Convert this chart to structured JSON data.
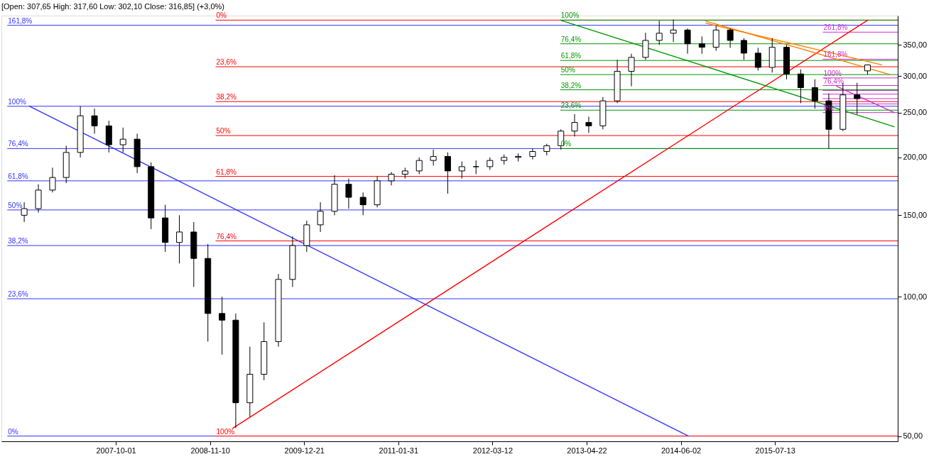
{
  "chart_data": {
    "type": "candlestick",
    "title": "[Open: 307,65  High: 317,60  Low: 302,10  Close: 316,85] (+3,0%)",
    "color": "#000000",
    "x": [
      "2006-09-01",
      "2006-11-01",
      "2007-01-01",
      "2007-03-01",
      "2007-05-01",
      "2007-07-01",
      "2007-09-01",
      "2007-11-01",
      "2008-01-01",
      "2008-03-01",
      "2008-05-01",
      "2008-07-01",
      "2008-09-01",
      "2008-11-01",
      "2009-01-01",
      "2009-03-01",
      "2009-05-01",
      "2009-07-01",
      "2009-09-01",
      "2009-11-01",
      "2010-01-01",
      "2010-03-01",
      "2010-05-01",
      "2010-07-01",
      "2010-09-01",
      "2010-11-01",
      "2011-01-01",
      "2011-03-01",
      "2011-05-01",
      "2011-07-01",
      "2011-09-01",
      "2011-11-01",
      "2012-01-01",
      "2012-03-01",
      "2012-05-01",
      "2012-07-01",
      "2012-09-01",
      "2012-11-01",
      "2013-01-01",
      "2013-03-01",
      "2013-05-01",
      "2013-07-01",
      "2013-09-01",
      "2013-11-01",
      "2014-01-01",
      "2014-03-01",
      "2014-05-01",
      "2014-07-01",
      "2014-09-01",
      "2014-11-01",
      "2015-01-01",
      "2015-03-01",
      "2015-05-01",
      "2015-07-01",
      "2015-09-01",
      "2015-11-01",
      "2016-01-01",
      "2016-03-01",
      "2016-05-01",
      "2016-07-01",
      "2016-08-15"
    ],
    "ohlc": [
      [
        150,
        160,
        145,
        155
      ],
      [
        155,
        175,
        152,
        170
      ],
      [
        170,
        190,
        168,
        181
      ],
      [
        181,
        212,
        176,
        205
      ],
      [
        205,
        258,
        200,
        246
      ],
      [
        246,
        255,
        225,
        234
      ],
      [
        234,
        240,
        205,
        213
      ],
      [
        213,
        232,
        205,
        219
      ],
      [
        219,
        225,
        185,
        191
      ],
      [
        191,
        195,
        140,
        148
      ],
      [
        148,
        158,
        125,
        131
      ],
      [
        131,
        150,
        118,
        138
      ],
      [
        138,
        145,
        105,
        121
      ],
      [
        121,
        130,
        80,
        92
      ],
      [
        92,
        100,
        75,
        89
      ],
      [
        89,
        92,
        52,
        59
      ],
      [
        59,
        78,
        55,
        68
      ],
      [
        68,
        88,
        66,
        80
      ],
      [
        80,
        112,
        78,
        109
      ],
      [
        109,
        135,
        105,
        129
      ],
      [
        129,
        146,
        125,
        143
      ],
      [
        143,
        160,
        138,
        153
      ],
      [
        153,
        183,
        150,
        175
      ],
      [
        175,
        180,
        155,
        164
      ],
      [
        164,
        168,
        150,
        158
      ],
      [
        158,
        182,
        156,
        178
      ],
      [
        178,
        186,
        174,
        184
      ],
      [
        184,
        190,
        180,
        187
      ],
      [
        187,
        200,
        184,
        197
      ],
      [
        197,
        208,
        192,
        201
      ],
      [
        201,
        205,
        167,
        187
      ],
      [
        187,
        196,
        180,
        191
      ],
      [
        191,
        197,
        184,
        191
      ],
      [
        191,
        200,
        188,
        197
      ],
      [
        197,
        203,
        193,
        200
      ],
      [
        200,
        204,
        196,
        201
      ],
      [
        201,
        209,
        198,
        206
      ],
      [
        206,
        214,
        202,
        212
      ],
      [
        212,
        230,
        208,
        228
      ],
      [
        228,
        248,
        222,
        238
      ],
      [
        238,
        245,
        226,
        234
      ],
      [
        234,
        270,
        230,
        265
      ],
      [
        265,
        325,
        262,
        307
      ],
      [
        307,
        335,
        285,
        329
      ],
      [
        329,
        372,
        325,
        358
      ],
      [
        358,
        395,
        350,
        371
      ],
      [
        371,
        397,
        355,
        377
      ],
      [
        377,
        380,
        335,
        352
      ],
      [
        352,
        365,
        335,
        346
      ],
      [
        346,
        385,
        340,
        377
      ],
      [
        377,
        380,
        345,
        358
      ],
      [
        358,
        362,
        325,
        336
      ],
      [
        336,
        345,
        308,
        313
      ],
      [
        313,
        362,
        305,
        346
      ],
      [
        346,
        350,
        295,
        303
      ],
      [
        303,
        310,
        262,
        283
      ],
      [
        283,
        295,
        255,
        265
      ],
      [
        265,
        275,
        209,
        230
      ],
      [
        230,
        290,
        228,
        273
      ],
      [
        273,
        290,
        248,
        268
      ],
      [
        307.65,
        317.6,
        302.1,
        316.85
      ]
    ],
    "series": [
      {
        "type": "line",
        "color": "#3333ff",
        "x": [
          "2006-09-23",
          "2014-07-05"
        ],
        "values": [
          258,
          50
        ]
      },
      {
        "type": "line",
        "color": "#ff0000",
        "x": [
          "2009-02-17",
          "2016-08-16"
        ],
        "values": [
          52,
          396
        ]
      },
      {
        "type": "line",
        "color": "#009900",
        "x": [
          "2012-12-29",
          "2016-12-08"
        ],
        "values": [
          396,
          233
        ]
      },
      {
        "type": "line",
        "color": "#cc33cc",
        "x": [
          "2016-04-04",
          "2016-12-08"
        ],
        "values": [
          285,
          250
        ]
      },
      {
        "type": "line",
        "color": "#ff7f00",
        "x": [
          "2014-09-18",
          "2016-11-20"
        ],
        "values": [
          394,
          302
        ]
      },
      {
        "type": "line",
        "color": "#ff7f00",
        "x": [
          "2014-09-18",
          "2016-10-15"
        ],
        "values": [
          390,
          317
        ]
      }
    ],
    "xlim": [
      "2006-06-10",
      "2016-12-08"
    ],
    "xticks": [
      "2007-10-01",
      "2008-11-10",
      "2009-12-21",
      "2011-01-31",
      "2012-03-12",
      "2013-04-22",
      "2014-06-02",
      "2015-07-13"
    ],
    "log": true,
    "ylim": [
      48.7,
      405
    ],
    "yticks": [
      {
        "value": 50,
        "label": "50,00"
      },
      {
        "value": 100,
        "label": "100,00"
      },
      {
        "value": 150,
        "label": "150,00"
      },
      {
        "value": 200,
        "label": "200,00"
      },
      {
        "value": 250,
        "label": "250,00"
      },
      {
        "value": 300,
        "label": "300,00"
      },
      {
        "value": 350,
        "label": "350,00"
      }
    ],
    "grid": false,
    "ref_lines": [
      {
        "axis": "y",
        "value": 50,
        "color": "#3333ff"
      },
      {
        "axis": "y",
        "value": 99,
        "color": "#3333ff"
      },
      {
        "axis": "y",
        "value": 129,
        "color": "#3333ff"
      },
      {
        "axis": "y",
        "value": 154,
        "color": "#3333ff"
      },
      {
        "axis": "y",
        "value": 178,
        "color": "#3333ff"
      },
      {
        "axis": "y",
        "value": 209,
        "color": "#3333ff"
      },
      {
        "axis": "y",
        "value": 258,
        "color": "#3333ff"
      },
      {
        "axis": "y",
        "value": 386,
        "color": "#3333ff"
      },
      {
        "axis": "y",
        "value": 396,
        "color": "#ff0000"
      },
      {
        "axis": "y",
        "value": 314,
        "color": "#ff0000"
      },
      {
        "axis": "y",
        "value": 264,
        "color": "#ff0000"
      },
      {
        "axis": "y",
        "value": 223,
        "color": "#ff0000"
      },
      {
        "axis": "y",
        "value": 182,
        "color": "#ff0000"
      },
      {
        "axis": "y",
        "value": 132,
        "color": "#ff0000"
      },
      {
        "axis": "y",
        "value": 50,
        "color": "#ff0000"
      },
      {
        "axis": "y",
        "value": 396,
        "color": "#009900"
      },
      {
        "axis": "y",
        "value": 352,
        "color": "#009900"
      },
      {
        "axis": "y",
        "value": 324,
        "color": "#009900"
      },
      {
        "axis": "y",
        "value": 302,
        "color": "#009900"
      },
      {
        "axis": "y",
        "value": 280,
        "color": "#009900"
      },
      {
        "axis": "y",
        "value": 253,
        "color": "#009900"
      },
      {
        "axis": "y",
        "value": 209,
        "color": "#009900"
      },
      {
        "axis": "y",
        "value": 373,
        "color": "#cc33cc"
      },
      {
        "axis": "y",
        "value": 326,
        "color": "#cc33cc"
      },
      {
        "axis": "y",
        "value": 297,
        "color": "#cc33cc"
      },
      {
        "axis": "y",
        "value": 286,
        "color": "#cc33cc"
      },
      {
        "axis": "y",
        "value": 279,
        "color": "#cc33cc"
      },
      {
        "axis": "y",
        "value": 274,
        "color": "#cc33cc"
      },
      {
        "axis": "y",
        "value": 268,
        "color": "#cc33cc"
      },
      {
        "axis": "y",
        "value": 261,
        "color": "#cc33cc"
      },
      {
        "axis": "y",
        "value": 250,
        "color": "#cc33cc"
      }
    ],
    "annotations": [
      {
        "text": "0%",
        "x": "2006-06-20",
        "y": 50
      },
      {
        "text": "23,6%",
        "x": "2006-06-20",
        "y": 99
      },
      {
        "text": "38,2%",
        "x": "2006-06-20",
        "y": 129
      },
      {
        "text": "50%",
        "x": "2006-06-20",
        "y": 154
      },
      {
        "text": "61,8%",
        "x": "2006-06-20",
        "y": 178
      },
      {
        "text": "76,4%",
        "x": "2006-06-20",
        "y": 209
      },
      {
        "text": "100%",
        "x": "2006-06-20",
        "y": 258
      },
      {
        "text": "161,8%",
        "x": "2006-06-20",
        "y": 386
      },
      {
        "text": "0%",
        "x": "2008-12-04",
        "y": 396
      },
      {
        "text": "23,6%",
        "x": "2008-12-04",
        "y": 314
      },
      {
        "text": "38,2%",
        "x": "2008-12-04",
        "y": 264
      },
      {
        "text": "50%",
        "x": "2008-12-04",
        "y": 223
      },
      {
        "text": "61,8%",
        "x": "2008-12-04",
        "y": 182
      },
      {
        "text": "76,4%",
        "x": "2008-12-04",
        "y": 132
      },
      {
        "text": "100%",
        "x": "2008-12-04",
        "y": 50
      },
      {
        "text": "100%",
        "x": "2012-12-29",
        "y": 396
      },
      {
        "text": "76,4%",
        "x": "2012-12-29",
        "y": 352
      },
      {
        "text": "61,8%",
        "x": "2012-12-29",
        "y": 324
      },
      {
        "text": "50%",
        "x": "2012-12-29",
        "y": 302
      },
      {
        "text": "38,2%",
        "x": "2012-12-29",
        "y": 280
      },
      {
        "text": "23,6%",
        "x": "2012-12-29",
        "y": 253
      },
      {
        "text": "0%",
        "x": "2012-12-29",
        "y": 209
      },
      {
        "text": "261,8%",
        "x": "2016-02-04",
        "y": 373
      },
      {
        "text": "161,8%",
        "x": "2016-02-04",
        "y": 326
      },
      {
        "text": "100%",
        "x": "2016-02-04",
        "y": 297
      },
      {
        "text": "76,4%",
        "x": "2016-02-04",
        "y": 286
      },
      {
        "text": "0%",
        "x": "2016-02-04",
        "y": 250
      }
    ]
  }
}
